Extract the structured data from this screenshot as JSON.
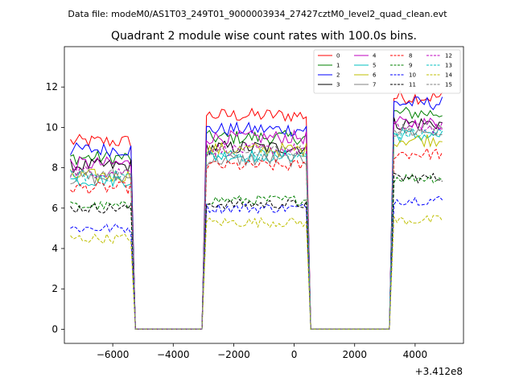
{
  "chart_data": {
    "type": "line",
    "suptitle": "Data file: modeM0/AS1T03_249T01_9000003934_27427cztM0_level2_quad_clean.evt",
    "title": "Quadrant 2 module wise count rates with 100.0s bins.",
    "xlabel": "",
    "ylabel": "",
    "x_offset_label": "+3.412e8",
    "xlim": [
      -7600,
      5600
    ],
    "ylim": [
      -0.7,
      14.0
    ],
    "xticks": [
      -6000,
      -4000,
      -2000,
      0,
      2000,
      4000
    ],
    "xtick_labels": [
      "−6000",
      "−4000",
      "−2000",
      "0",
      "2000",
      "4000"
    ],
    "yticks": [
      0,
      2,
      4,
      6,
      8,
      10,
      12
    ],
    "ytick_labels": [
      "0",
      "2",
      "4",
      "6",
      "8",
      "10",
      "12"
    ],
    "legend_position": "top-right",
    "segments": [
      {
        "start": -7400,
        "end": -5400,
        "ramp": 150
      },
      {
        "start": -2900,
        "end": 400,
        "ramp": 150
      },
      {
        "start": 3300,
        "end": 4900,
        "ramp": 150
      }
    ],
    "zero_ranges": [
      [
        -5250,
        -3050
      ],
      [
        550,
        3150
      ]
    ],
    "series": [
      {
        "name": "0",
        "color": "#ff0000",
        "dash": "solid",
        "levels": [
          9.3,
          10.6,
          11.5
        ],
        "noise": 0.35
      },
      {
        "name": "1",
        "color": "#008000",
        "dash": "solid",
        "levels": [
          8.5,
          9.5,
          10.7
        ],
        "noise": 0.35
      },
      {
        "name": "2",
        "color": "#0000ff",
        "dash": "solid",
        "levels": [
          8.9,
          9.9,
          11.2
        ],
        "noise": 0.35
      },
      {
        "name": "3",
        "color": "#000000",
        "dash": "solid",
        "levels": [
          8.1,
          9.0,
          10.2
        ],
        "noise": 0.35
      },
      {
        "name": "4",
        "color": "#bf00bf",
        "dash": "solid",
        "levels": [
          8.2,
          9.5,
          10.2
        ],
        "noise": 0.35
      },
      {
        "name": "5",
        "color": "#00bfbf",
        "dash": "solid",
        "levels": [
          7.4,
          8.6,
          9.6
        ],
        "noise": 0.35
      },
      {
        "name": "6",
        "color": "#bfbf00",
        "dash": "solid",
        "levels": [
          7.6,
          8.9,
          9.4
        ],
        "noise": 0.35
      },
      {
        "name": "7",
        "color": "#808080",
        "dash": "solid",
        "levels": [
          7.5,
          8.4,
          9.8
        ],
        "noise": 0.35
      },
      {
        "name": "8",
        "color": "#ff0000",
        "dash": "dashed",
        "levels": [
          7.0,
          8.1,
          8.7
        ],
        "noise": 0.3
      },
      {
        "name": "9",
        "color": "#008000",
        "dash": "dashed",
        "levels": [
          6.1,
          6.4,
          7.5
        ],
        "noise": 0.25
      },
      {
        "name": "10",
        "color": "#0000ff",
        "dash": "dashed",
        "levels": [
          5.0,
          6.0,
          6.4
        ],
        "noise": 0.25
      },
      {
        "name": "11",
        "color": "#000000",
        "dash": "dashed",
        "levels": [
          6.0,
          6.2,
          7.5
        ],
        "noise": 0.25
      },
      {
        "name": "12",
        "color": "#bf00bf",
        "dash": "dashed",
        "levels": [
          7.8,
          8.9,
          10.0
        ],
        "noise": 0.3
      },
      {
        "name": "13",
        "color": "#00bfbf",
        "dash": "dashed",
        "levels": [
          7.6,
          8.6,
          9.7
        ],
        "noise": 0.3
      },
      {
        "name": "14",
        "color": "#bfbf00",
        "dash": "dashed",
        "levels": [
          4.5,
          5.3,
          5.4
        ],
        "noise": 0.25
      },
      {
        "name": "15",
        "color": "#808080",
        "dash": "dashed",
        "levels": [
          7.7,
          8.8,
          9.9
        ],
        "noise": 0.3
      }
    ]
  }
}
